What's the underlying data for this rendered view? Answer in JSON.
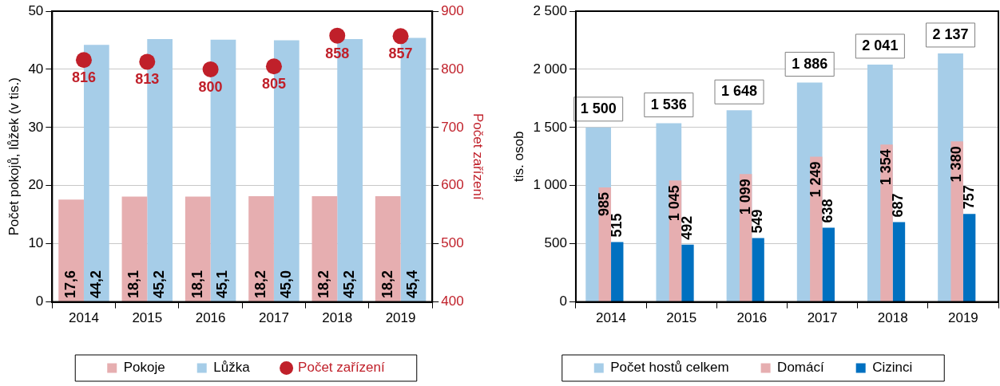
{
  "chart_data": [
    {
      "type": "bar",
      "categories": [
        "2014",
        "2015",
        "2016",
        "2017",
        "2018",
        "2019"
      ],
      "ylabel": "Počet pokojů, lůžek (v tis.)",
      "y2label": "Počet zařízení",
      "ylim": [
        0,
        50
      ],
      "yticks": [
        0,
        10,
        20,
        30,
        40,
        50
      ],
      "y2lim": [
        400,
        900
      ],
      "y2ticks": [
        400,
        500,
        600,
        700,
        800,
        900
      ],
      "grid": "y",
      "legend": "bottom",
      "marker": "circle",
      "series": [
        {
          "name": "Pokoje",
          "color": "#e6aeb0",
          "values": [
            17.6,
            18.1,
            18.1,
            18.2,
            18.2,
            18.2
          ],
          "value_labels": [
            "17,6",
            "18,1",
            "18,1",
            "18,2",
            "18,2",
            "18,2"
          ]
        },
        {
          "name": "Lůžka",
          "color": "#a6cde8",
          "values": [
            44.2,
            45.2,
            45.1,
            45.0,
            45.2,
            45.4
          ],
          "value_labels": [
            "44,2",
            "45,2",
            "45,1",
            "45,0",
            "45,2",
            "45,4"
          ]
        },
        {
          "name": "Počet zařízení",
          "type": "scatter",
          "axis": "y2",
          "color": "#c0202a",
          "values": [
            816,
            813,
            800,
            805,
            858,
            857
          ],
          "value_labels": [
            "816",
            "813",
            "800",
            "805",
            "858",
            "857"
          ]
        }
      ]
    },
    {
      "type": "bar",
      "categories": [
        "2014",
        "2015",
        "2016",
        "2017",
        "2018",
        "2019"
      ],
      "ylabel": "tis. osob",
      "ylim": [
        0,
        2500
      ],
      "yticks": [
        0,
        500,
        {
          "value": 1000,
          "label": "1 000"
        },
        {
          "value": 1500,
          "label": "1 500"
        },
        {
          "value": 2000,
          "label": "2 000"
        },
        {
          "value": 2500,
          "label": "2 500"
        }
      ],
      "grid": "y",
      "legend": "bottom",
      "series": [
        {
          "name": "Počet hostů celkem",
          "color": "#a6cde8",
          "values": [
            1500,
            1536,
            1648,
            1886,
            2041,
            2137
          ],
          "value_labels": [
            "1 500",
            "1 536",
            "1 648",
            "1 886",
            "2 041",
            "2 137"
          ]
        },
        {
          "name": "Domácí",
          "color": "#e6aeb0",
          "values": [
            985,
            1045,
            1099,
            1249,
            1354,
            1380
          ],
          "value_labels": [
            "985",
            "1 045",
            "1 099",
            "1 249",
            "1 354",
            "1 380"
          ]
        },
        {
          "name": "Cizinci",
          "color": "#0070c0",
          "values": [
            515,
            492,
            549,
            638,
            687,
            757
          ],
          "value_labels": [
            "515",
            "492",
            "549",
            "638",
            "687",
            "757"
          ]
        }
      ]
    }
  ]
}
